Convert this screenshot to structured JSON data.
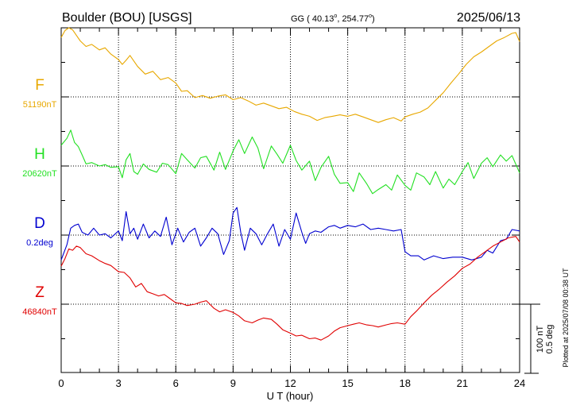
{
  "header": {
    "station": "Boulder (BOU)  [USGS]",
    "coords": "GG ( 40.13",
    "coords_mid": ", 254.77",
    "coords_end": ")",
    "date": "2025/06/13"
  },
  "footer": {
    "plotted_at": "Plotted at 2025/07/08 00:38 UT"
  },
  "chart_data": {
    "type": "line",
    "title": "Boulder (BOU)  [USGS]",
    "xlabel": "U T (hour)",
    "xlim": [
      0,
      24
    ],
    "x_ticks": [
      0,
      3,
      6,
      9,
      12,
      15,
      18,
      21,
      24
    ],
    "x_tick_labels": [
      "0",
      "3",
      "6",
      "9",
      "12",
      "15",
      "18",
      "21",
      "24"
    ],
    "grid": true,
    "scale_bar": {
      "line1": "100 nT",
      "line2": "0.5 deg"
    },
    "series": [
      {
        "name": "F",
        "baseline_label": "51190nT",
        "unit": "nT",
        "baseline": 51190,
        "color": "#e8a800",
        "x": [
          0,
          0.2,
          0.4,
          0.6,
          0.8,
          1.0,
          1.3,
          1.6,
          2.0,
          2.3,
          2.6,
          3.0,
          3.2,
          3.4,
          3.6,
          4.0,
          4.4,
          4.8,
          5.2,
          5.6,
          6.0,
          6.3,
          6.6,
          7.0,
          7.4,
          7.8,
          8.2,
          8.6,
          9.0,
          9.4,
          9.8,
          10.2,
          10.6,
          11.0,
          11.4,
          11.8,
          12.2,
          12.6,
          13.0,
          13.4,
          13.8,
          14.2,
          14.6,
          15.0,
          15.4,
          15.8,
          16.2,
          16.6,
          17.0,
          17.4,
          17.8,
          18.0,
          18.4,
          18.8,
          19.2,
          19.6,
          20.0,
          20.4,
          20.8,
          21.2,
          21.6,
          22.0,
          22.4,
          22.8,
          23.2,
          23.6,
          23.8,
          24.0
        ],
        "y": [
          86,
          96,
          103,
          97,
          89,
          81,
          73,
          76,
          68,
          71,
          62,
          54,
          47,
          53,
          60,
          44,
          33,
          37,
          25,
          28,
          20,
          8,
          9,
          -1,
          2,
          -2,
          1,
          3,
          -4,
          -1,
          -6,
          -12,
          -9,
          -13,
          -17,
          -15,
          -21,
          -25,
          -28,
          -34,
          -30,
          -28,
          -26,
          -28,
          -25,
          -29,
          -33,
          -37,
          -33,
          -30,
          -35,
          -29,
          -25,
          -22,
          -16,
          -5,
          6,
          20,
          33,
          47,
          58,
          65,
          73,
          81,
          86,
          92,
          93,
          80
        ]
      },
      {
        "name": "H",
        "baseline_label": "20620nT",
        "unit": "nT",
        "baseline": 20620,
        "color": "#22e022",
        "x": [
          0,
          0.3,
          0.5,
          0.7,
          0.9,
          1.1,
          1.3,
          1.6,
          2.0,
          2.3,
          2.6,
          3.0,
          3.2,
          3.4,
          3.6,
          3.8,
          4.0,
          4.3,
          4.6,
          5.0,
          5.3,
          5.6,
          6.0,
          6.3,
          6.6,
          7.0,
          7.3,
          7.6,
          8.0,
          8.3,
          8.6,
          9.0,
          9.3,
          9.6,
          9.8,
          10.0,
          10.3,
          10.6,
          11.0,
          11.3,
          11.6,
          12.0,
          12.3,
          12.6,
          13.0,
          13.3,
          13.6,
          14.0,
          14.3,
          14.6,
          15.0,
          15.3,
          15.6,
          16.0,
          16.3,
          16.6,
          17.0,
          17.3,
          17.6,
          18.0,
          18.3,
          18.6,
          19.0,
          19.3,
          19.6,
          20.0,
          20.3,
          20.6,
          21.0,
          21.3,
          21.6,
          22.0,
          22.3,
          22.6,
          23.0,
          23.3,
          23.6,
          24.0
        ],
        "y": [
          30,
          40,
          52,
          34,
          28,
          16,
          3,
          5,
          0,
          2,
          -2,
          -1,
          -17,
          9,
          18,
          -8,
          -12,
          3,
          -5,
          -9,
          4,
          2,
          -11,
          18,
          9,
          -3,
          12,
          14,
          -6,
          20,
          -5,
          22,
          38,
          18,
          30,
          42,
          26,
          -4,
          29,
          17,
          4,
          30,
          8,
          -6,
          7,
          -21,
          -2,
          14,
          -12,
          -25,
          -24,
          -37,
          -10,
          -26,
          -40,
          -34,
          -27,
          -35,
          -13,
          -28,
          -35,
          -10,
          -16,
          -27,
          -8,
          -32,
          -19,
          -27,
          -8,
          5,
          -18,
          4,
          12,
          -1,
          16,
          7,
          15,
          -10
        ]
      },
      {
        "name": "D",
        "baseline_label": "0.2deg",
        "unit": "deg",
        "baseline": 0.2,
        "color": "#0000d0",
        "x": [
          0,
          0.3,
          0.5,
          0.7,
          0.9,
          1.1,
          1.4,
          1.7,
          2.0,
          2.3,
          2.6,
          3.0,
          3.2,
          3.4,
          3.6,
          3.8,
          4.0,
          4.3,
          4.6,
          4.9,
          5.2,
          5.5,
          5.8,
          6.1,
          6.4,
          6.7,
          7.0,
          7.3,
          7.6,
          7.9,
          8.2,
          8.5,
          8.8,
          9.0,
          9.2,
          9.4,
          9.6,
          9.9,
          10.2,
          10.5,
          10.8,
          11.1,
          11.4,
          11.7,
          12.0,
          12.3,
          12.6,
          12.8,
          13.0,
          13.3,
          13.6,
          14.0,
          14.3,
          14.6,
          15.0,
          15.4,
          15.8,
          16.2,
          16.6,
          17.0,
          17.4,
          17.8,
          18.0,
          18.3,
          18.7,
          19.0,
          19.5,
          20.0,
          20.5,
          21.0,
          21.5,
          22.0,
          22.3,
          22.6,
          23.0,
          23.3,
          23.6,
          24.0
        ],
        "y": [
          -0.18,
          -0.07,
          0.05,
          0.07,
          0.08,
          0.02,
          0,
          0.05,
          0,
          0.01,
          -0.02,
          0.03,
          -0.04,
          0.17,
          0.01,
          0.05,
          -0.03,
          0.08,
          -0.02,
          0.03,
          -0.01,
          0.13,
          -0.07,
          0.05,
          -0.05,
          0.02,
          0.05,
          -0.08,
          -0.02,
          0.05,
          0.01,
          -0.14,
          -0.04,
          0.16,
          0.2,
          0.02,
          -0.11,
          0.05,
          0.01,
          -0.07,
          0.01,
          0.08,
          -0.08,
          0.04,
          -0.03,
          0.16,
          0.02,
          -0.06,
          0.01,
          0.03,
          0.02,
          0.06,
          0.07,
          0.05,
          0.07,
          0.06,
          0.08,
          0.04,
          0.05,
          0.04,
          0.03,
          0.04,
          -0.12,
          -0.15,
          -0.15,
          -0.18,
          -0.15,
          -0.17,
          -0.16,
          -0.16,
          -0.18,
          -0.16,
          -0.11,
          -0.13,
          -0.04,
          -0.03,
          0.04,
          0.03
        ]
      },
      {
        "name": "Z",
        "baseline_label": "46840nT",
        "unit": "nT",
        "baseline": 46840,
        "color": "#e00000",
        "x": [
          0,
          0.2,
          0.4,
          0.6,
          0.8,
          1.0,
          1.3,
          1.6,
          2.0,
          2.3,
          2.6,
          3.0,
          3.3,
          3.6,
          3.9,
          4.2,
          4.5,
          4.8,
          5.1,
          5.4,
          5.7,
          6.0,
          6.3,
          6.6,
          7.0,
          7.3,
          7.6,
          8.0,
          8.3,
          8.6,
          9.0,
          9.3,
          9.6,
          10.0,
          10.3,
          10.6,
          11.0,
          11.3,
          11.6,
          12.0,
          12.3,
          12.6,
          13.0,
          13.3,
          13.6,
          14.0,
          14.3,
          14.6,
          15.0,
          15.3,
          15.6,
          16.0,
          16.3,
          16.6,
          17.0,
          17.3,
          17.6,
          18.0,
          18.3,
          18.6,
          19.0,
          19.4,
          19.8,
          20.2,
          20.6,
          21.0,
          21.4,
          21.8,
          22.2,
          22.6,
          23.0,
          23.4,
          23.8,
          24.0
        ],
        "y": [
          55,
          66,
          80,
          78,
          84,
          82,
          73,
          70,
          63,
          59,
          56,
          47,
          46,
          38,
          25,
          30,
          18,
          15,
          12,
          14,
          8,
          2,
          1,
          -2,
          0,
          3,
          5,
          -6,
          -11,
          -8,
          -12,
          -17,
          -24,
          -27,
          -23,
          -20,
          -22,
          -29,
          -37,
          -42,
          -46,
          -45,
          -50,
          -49,
          -52,
          -46,
          -39,
          -34,
          -31,
          -29,
          -27,
          -30,
          -31,
          -33,
          -30,
          -28,
          -27,
          -29,
          -18,
          -10,
          2,
          13,
          22,
          32,
          41,
          52,
          58,
          68,
          76,
          84,
          90,
          96,
          98,
          90
        ]
      }
    ]
  }
}
